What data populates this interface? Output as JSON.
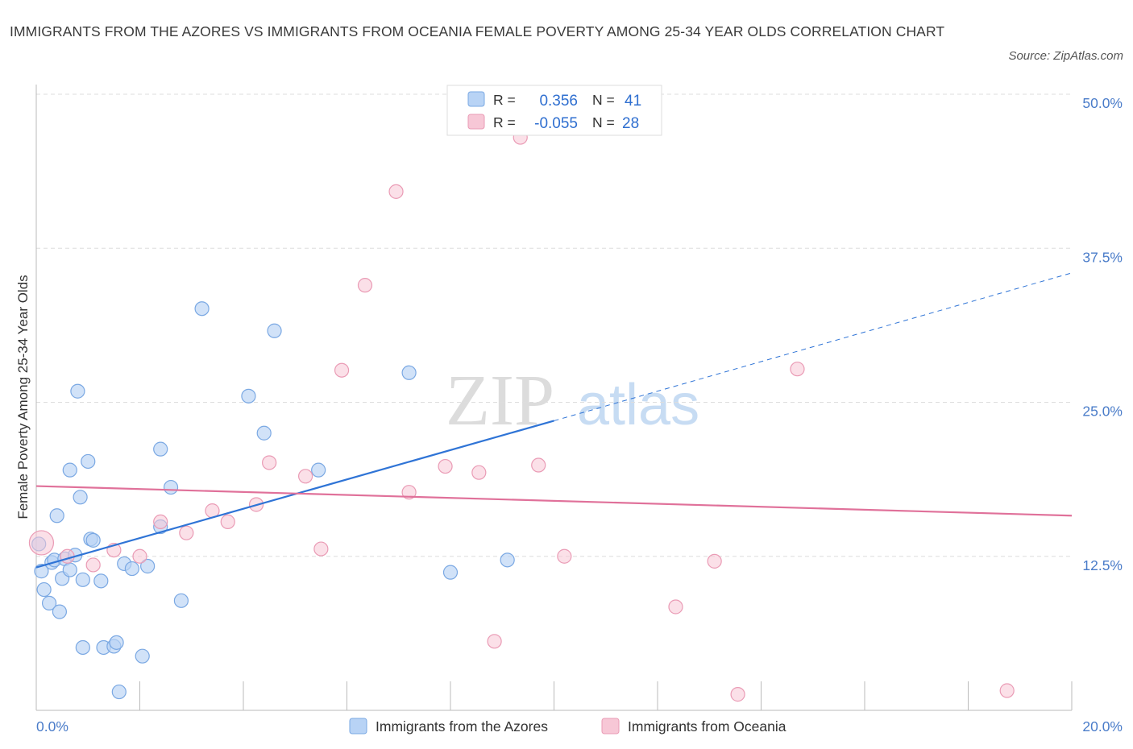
{
  "title": "IMMIGRANTS FROM THE AZORES VS IMMIGRANTS FROM OCEANIA FEMALE POVERTY AMONG 25-34 YEAR OLDS CORRELATION CHART",
  "source": "Source: ZipAtlas.com",
  "watermark": {
    "zip": "ZIP",
    "atlas": "atlas"
  },
  "colors": {
    "blue_fill": "#b8d3f5",
    "blue_stroke": "#7aa8e3",
    "blue_line": "#2f74d6",
    "pink_fill": "#f7c7d6",
    "pink_stroke": "#ea9bb5",
    "pink_line": "#e0719a",
    "axis_label": "#4a7cc9",
    "grid": "#dddddd"
  },
  "stats": [
    {
      "r_label": "R =",
      "r_value": "0.356",
      "n_label": "N =",
      "n_value": "41"
    },
    {
      "r_label": "R =",
      "r_value": "-0.055",
      "n_label": "N =",
      "n_value": "28"
    }
  ],
  "chart_data": {
    "type": "scatter",
    "ylabel": "Female Poverty Among 25-34 Year Olds",
    "xlabel": "",
    "xlim": [
      0,
      20
    ],
    "ylim": [
      0,
      50
    ],
    "x_tick_labels": [
      "0.0%",
      "20.0%"
    ],
    "y_ticks": [
      12.5,
      25.0,
      37.5,
      50.0
    ],
    "y_tick_labels": [
      "12.5%",
      "25.0%",
      "37.5%",
      "50.0%"
    ],
    "legend": [
      "Immigrants from the Azores",
      "Immigrants from Oceania"
    ],
    "series": [
      {
        "name": "Immigrants from the Azores",
        "r": 0.356,
        "n": 41,
        "trend": {
          "x0": 0,
          "y0": 11.6,
          "x1": 10.0,
          "y1": 23.5,
          "x_dash_end": 20,
          "y_dash_end": 35.5
        },
        "points": [
          [
            0.05,
            13.5
          ],
          [
            0.1,
            11.3
          ],
          [
            0.15,
            9.8
          ],
          [
            0.25,
            8.7
          ],
          [
            0.3,
            12.0
          ],
          [
            0.35,
            12.2
          ],
          [
            0.4,
            15.8
          ],
          [
            0.45,
            8.0
          ],
          [
            0.5,
            10.7
          ],
          [
            0.55,
            12.3
          ],
          [
            0.65,
            11.4
          ],
          [
            0.65,
            19.5
          ],
          [
            0.75,
            12.6
          ],
          [
            0.8,
            25.9
          ],
          [
            0.85,
            17.3
          ],
          [
            0.9,
            5.1
          ],
          [
            0.9,
            10.6
          ],
          [
            1.0,
            20.2
          ],
          [
            1.05,
            13.9
          ],
          [
            1.1,
            13.8
          ],
          [
            1.25,
            10.5
          ],
          [
            1.3,
            5.1
          ],
          [
            1.5,
            5.2
          ],
          [
            1.55,
            5.5
          ],
          [
            1.6,
            1.5
          ],
          [
            1.7,
            11.9
          ],
          [
            1.85,
            11.5
          ],
          [
            2.05,
            4.4
          ],
          [
            2.15,
            11.7
          ],
          [
            2.4,
            14.9
          ],
          [
            2.4,
            21.2
          ],
          [
            2.6,
            18.1
          ],
          [
            2.8,
            8.9
          ],
          [
            3.2,
            32.6
          ],
          [
            4.1,
            25.5
          ],
          [
            4.4,
            22.5
          ],
          [
            4.6,
            30.8
          ],
          [
            5.45,
            19.5
          ],
          [
            7.2,
            27.4
          ],
          [
            8.0,
            11.2
          ],
          [
            9.1,
            12.2
          ]
        ]
      },
      {
        "name": "Immigrants from Oceania",
        "r": -0.055,
        "n": 28,
        "trend": {
          "x0": 0,
          "y0": 18.2,
          "x1": 20,
          "y1": 15.8
        },
        "points": [
          [
            0.1,
            13.6
          ],
          [
            0.6,
            12.5
          ],
          [
            1.1,
            11.8
          ],
          [
            1.5,
            13.0
          ],
          [
            2.0,
            12.5
          ],
          [
            2.4,
            15.3
          ],
          [
            2.9,
            14.4
          ],
          [
            3.4,
            16.2
          ],
          [
            3.7,
            15.3
          ],
          [
            4.25,
            16.7
          ],
          [
            4.5,
            20.1
          ],
          [
            5.2,
            19.0
          ],
          [
            5.5,
            13.1
          ],
          [
            5.9,
            27.6
          ],
          [
            6.35,
            34.5
          ],
          [
            6.95,
            42.1
          ],
          [
            7.2,
            17.7
          ],
          [
            7.9,
            19.8
          ],
          [
            8.55,
            19.3
          ],
          [
            8.85,
            5.6
          ],
          [
            9.35,
            46.5
          ],
          [
            9.7,
            19.9
          ],
          [
            10.2,
            12.5
          ],
          [
            12.35,
            8.4
          ],
          [
            13.1,
            12.1
          ],
          [
            13.55,
            1.3
          ],
          [
            14.7,
            27.7
          ],
          [
            18.75,
            1.6
          ]
        ]
      }
    ]
  }
}
